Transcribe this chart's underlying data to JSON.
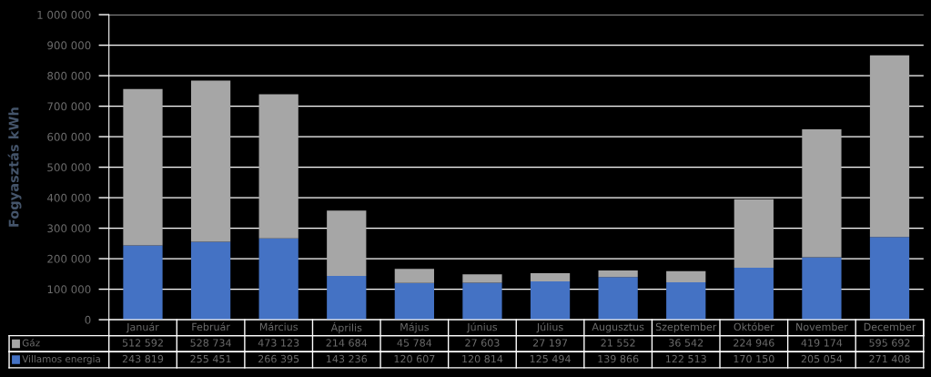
{
  "chart_data": {
    "type": "bar",
    "stacked": true,
    "ylabel": "Fogyasztás kWh",
    "categories": [
      "Január",
      "Február",
      "Március",
      "Április",
      "Május",
      "Június",
      "Július",
      "Augusztus",
      "Szeptember",
      "Október",
      "November",
      "December"
    ],
    "series": [
      {
        "name": "Villamos energia",
        "color": "#4472c4",
        "values": [
          243819,
          255451,
          266395,
          143236,
          120607,
          120814,
          125494,
          139866,
          122513,
          170150,
          205054,
          271408
        ],
        "value_labels": [
          "243 819",
          "255 451",
          "266 395",
          "143 236",
          "120 607",
          "120 814",
          "125 494",
          "139 866",
          "122 513",
          "170 150",
          "205 054",
          "271 408"
        ]
      },
      {
        "name": "Gáz",
        "color": "#a6a6a6",
        "values": [
          512592,
          528734,
          473123,
          214684,
          45784,
          27603,
          27197,
          21552,
          36542,
          224946,
          419174,
          595692
        ],
        "value_labels": [
          "512 592",
          "528 734",
          "473 123",
          "214 684",
          "45 784",
          "27 603",
          "27 197",
          "21 552",
          "36 542",
          "224 946",
          "419 174",
          "595 692"
        ]
      }
    ],
    "ylim": [
      0,
      1000000
    ],
    "yticks": [
      {
        "value": 0,
        "label": "0"
      },
      {
        "value": 100000,
        "label": "100 000"
      },
      {
        "value": 200000,
        "label": "200 000"
      },
      {
        "value": 300000,
        "label": "300 000"
      },
      {
        "value": 400000,
        "label": "400 000"
      },
      {
        "value": 500000,
        "label": "500 000"
      },
      {
        "value": 600000,
        "label": "600 000"
      },
      {
        "value": 700000,
        "label": "700 000"
      },
      {
        "value": 800000,
        "label": "800 000"
      },
      {
        "value": 900000,
        "label": "900 000"
      },
      {
        "value": 1000000,
        "label": "1 000 000"
      }
    ],
    "grid": "y",
    "legend": "bottom"
  }
}
